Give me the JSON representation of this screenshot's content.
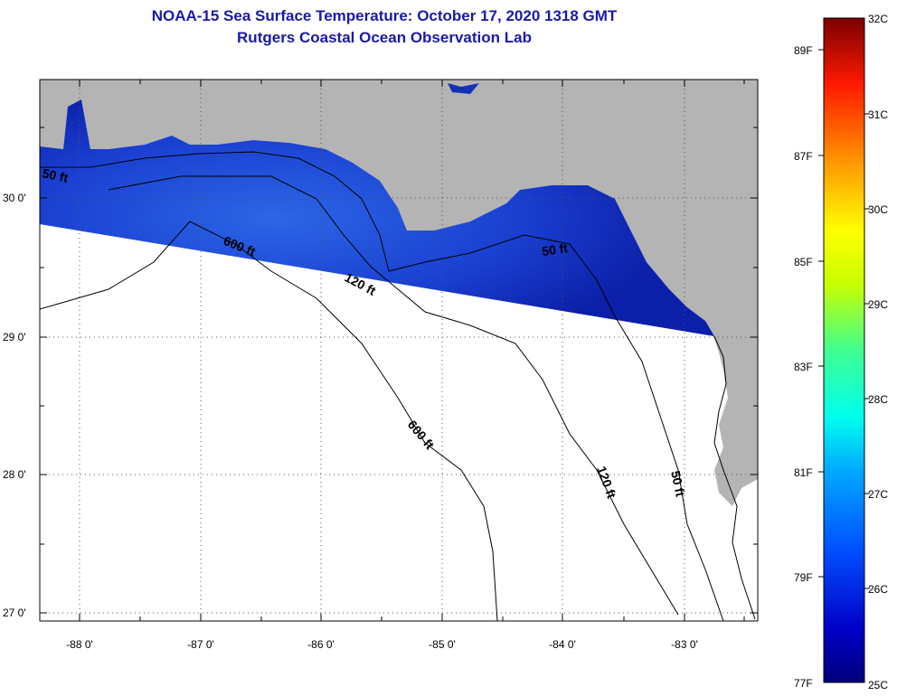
{
  "header": {
    "title": "NOAA-15 Sea Surface Temperature:  October 17, 2020 1318 GMT",
    "subtitle": "Rutgers Coastal Ocean Observation Lab"
  },
  "map": {
    "lat_labels": [
      "30 0'",
      "29 0'",
      "28 0'",
      "27 0'"
    ],
    "lon_labels": [
      "-88 0'",
      "-87 0'",
      "-86 0'",
      "-85 0'",
      "-84 0'",
      "-83 0'"
    ],
    "contour_labels": {
      "c50_west": "50 ft",
      "c600_west": "600 ft",
      "c120_mid": "120 ft",
      "c50_east": "50 ft",
      "c600_south": "600 ft",
      "c120_south": "120 ft",
      "c50_south": "50 ft"
    }
  },
  "colorbar": {
    "celsius": [
      "32C",
      "31C",
      "30C",
      "29C",
      "28C",
      "27C",
      "26C",
      "25C"
    ],
    "fahrenheit": [
      "89F",
      "87F",
      "85F",
      "83F",
      "81F",
      "79F",
      "77F"
    ]
  },
  "colors": {
    "title": "#1a1aa6",
    "land": "#b4b4b4",
    "ocean": "#ffffff",
    "sst_deep": "#0a1e9c",
    "sst_mid": "#1f4fd8"
  }
}
